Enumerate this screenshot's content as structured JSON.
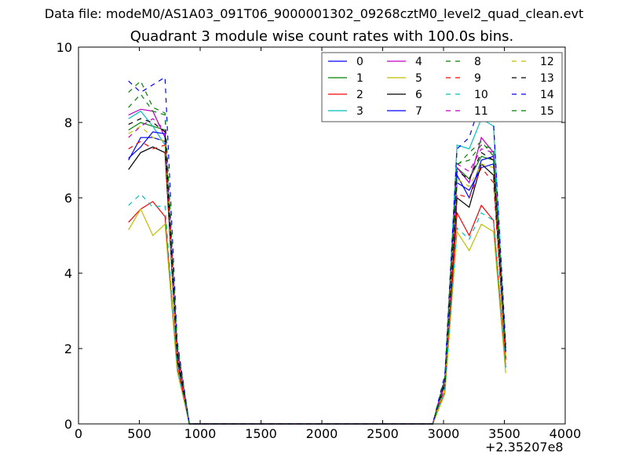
{
  "suptitle": "Data file: modeM0/AS1A03_091T06_9000001302_09268cztM0_level2_quad_clean.evt",
  "chart_data": {
    "type": "line",
    "title": "Quadrant 3 module wise count rates with 100.0s bins.",
    "xlabel": "",
    "ylabel": "",
    "x_offset_label": "+2.35207e8",
    "xlim": [
      0,
      4000
    ],
    "ylim": [
      0,
      10
    ],
    "xticks": [
      0,
      500,
      1000,
      1500,
      2000,
      2500,
      3000,
      3500,
      4000
    ],
    "yticks": [
      0,
      2,
      4,
      6,
      8,
      10
    ],
    "grid": false,
    "legend_position": "top-right",
    "x": [
      411,
      511,
      611,
      711,
      811,
      911,
      1011,
      2811,
      2911,
      3011,
      3111,
      3211,
      3311,
      3411,
      3511
    ],
    "series": [
      {
        "name": "0",
        "color": "#0000ff",
        "style": "solid",
        "values": [
          7.0,
          7.6,
          7.6,
          7.5,
          1.8,
          0,
          0,
          0,
          0,
          1.0,
          6.4,
          6.2,
          6.8,
          6.9,
          1.9
        ]
      },
      {
        "name": "1",
        "color": "#008000",
        "style": "solid",
        "values": [
          7.8,
          8.0,
          7.9,
          7.8,
          2.0,
          0,
          0,
          0,
          0,
          1.1,
          6.8,
          6.5,
          7.1,
          7.0,
          2.0
        ]
      },
      {
        "name": "2",
        "color": "#ff0000",
        "style": "solid",
        "values": [
          5.35,
          5.7,
          5.9,
          5.5,
          1.5,
          0,
          0,
          0,
          0,
          0.85,
          5.6,
          5.0,
          5.8,
          5.4,
          1.5
        ]
      },
      {
        "name": "3",
        "color": "#00bfbf",
        "style": "solid",
        "values": [
          8.1,
          8.3,
          7.9,
          7.4,
          1.9,
          0,
          0,
          0,
          0,
          1.2,
          7.4,
          7.3,
          8.1,
          7.9,
          2.0
        ]
      },
      {
        "name": "4",
        "color": "#bf00bf",
        "style": "solid",
        "values": [
          8.2,
          8.35,
          8.3,
          7.6,
          2.0,
          0,
          0,
          0,
          0,
          1.15,
          6.8,
          6.4,
          7.6,
          7.2,
          1.9
        ]
      },
      {
        "name": "5",
        "color": "#bfbf00",
        "style": "solid",
        "values": [
          5.15,
          5.7,
          5.0,
          5.3,
          1.4,
          0,
          0,
          0,
          0,
          0.8,
          5.1,
          4.6,
          5.3,
          5.1,
          1.35
        ]
      },
      {
        "name": "6",
        "color": "#000000",
        "style": "solid",
        "values": [
          6.75,
          7.2,
          7.35,
          7.2,
          1.7,
          0,
          0,
          0,
          0,
          1.0,
          6.0,
          5.75,
          6.9,
          6.6,
          1.75
        ]
      },
      {
        "name": "7",
        "color": "#0000ff",
        "style": "solid",
        "values": [
          7.05,
          7.35,
          7.75,
          7.7,
          1.9,
          0,
          0,
          0,
          0,
          1.0,
          6.6,
          6.0,
          7.0,
          7.1,
          1.9
        ]
      },
      {
        "name": "8",
        "color": "#008000",
        "style": "dashed",
        "values": [
          8.4,
          8.75,
          8.3,
          8.2,
          2.1,
          0,
          0,
          0,
          0,
          1.2,
          6.85,
          7.2,
          7.5,
          7.1,
          2.0
        ]
      },
      {
        "name": "9",
        "color": "#ff0000",
        "style": "dashed",
        "values": [
          7.3,
          7.5,
          7.3,
          7.4,
          1.7,
          0,
          0,
          0,
          0,
          1.0,
          6.1,
          6.0,
          6.8,
          6.4,
          1.7
        ]
      },
      {
        "name": "10",
        "color": "#00bfbf",
        "style": "dashed",
        "values": [
          5.8,
          6.1,
          5.75,
          5.8,
          1.5,
          0,
          0,
          0,
          0,
          0.9,
          5.2,
          4.9,
          5.6,
          5.4,
          1.5
        ]
      },
      {
        "name": "11",
        "color": "#bf00bf",
        "style": "dashed",
        "values": [
          7.6,
          7.9,
          8.1,
          7.8,
          1.9,
          0,
          0,
          0,
          0,
          1.1,
          6.9,
          6.7,
          7.3,
          7.2,
          1.9
        ]
      },
      {
        "name": "12",
        "color": "#bfbf00",
        "style": "dashed",
        "values": [
          7.7,
          7.9,
          7.6,
          7.5,
          1.9,
          0,
          0,
          0,
          0,
          1.0,
          6.5,
          6.3,
          6.9,
          6.8,
          1.8
        ]
      },
      {
        "name": "13",
        "color": "#000000",
        "style": "dashed",
        "values": [
          7.95,
          8.1,
          8.0,
          7.75,
          1.9,
          0,
          0,
          0,
          0,
          1.1,
          6.7,
          6.5,
          7.2,
          7.0,
          1.9
        ]
      },
      {
        "name": "14",
        "color": "#0000ff",
        "style": "dashed",
        "values": [
          9.1,
          8.8,
          9.0,
          9.2,
          2.2,
          0,
          0,
          0,
          0,
          1.3,
          7.3,
          7.6,
          8.6,
          8.0,
          2.1
        ]
      },
      {
        "name": "15",
        "color": "#008000",
        "style": "dashed",
        "values": [
          8.8,
          9.1,
          8.4,
          8.25,
          2.1,
          0,
          0,
          0,
          0,
          1.25,
          6.9,
          7.0,
          7.4,
          7.3,
          2.0
        ]
      }
    ]
  }
}
